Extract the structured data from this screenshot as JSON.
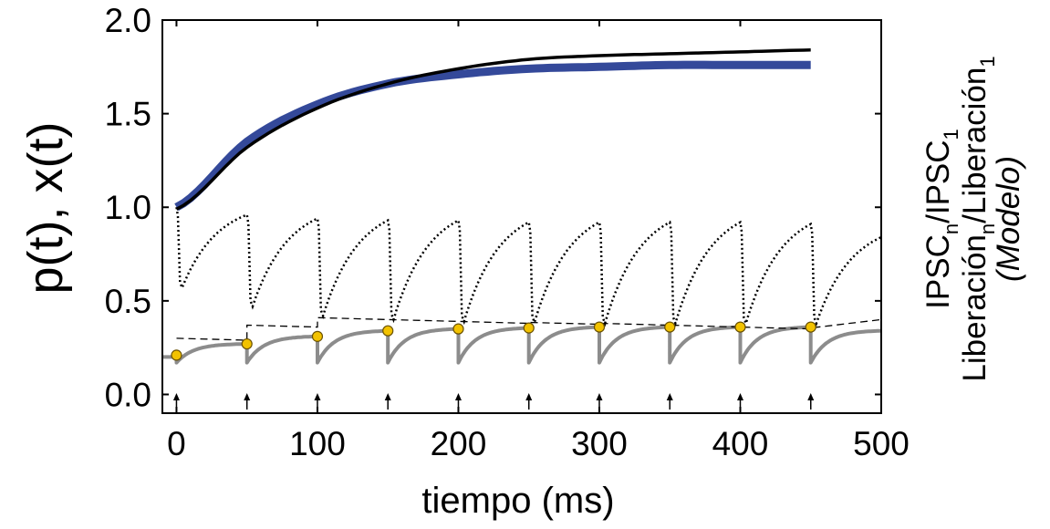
{
  "chart_data": {
    "type": "line",
    "xlabel": "tiempo (ms)",
    "ylabel": "p(t), x(t)",
    "right_label": {
      "line1": {
        "base": "IPSC",
        "sub1": "n",
        "mid": "/IPSC",
        "sub2": "1"
      },
      "line2": {
        "base": "Liberación",
        "sub1": "n",
        "mid": "/Liberación",
        "sub2": "1"
      },
      "line3": "(Modelo)"
    },
    "xlim": [
      -10,
      500
    ],
    "ylim": [
      -0.1,
      2.0
    ],
    "x_ticks": [
      0,
      100,
      200,
      300,
      400,
      500
    ],
    "x_tick_labels": [
      "0",
      "100",
      "200",
      "300",
      "400",
      "500"
    ],
    "y_ticks": [
      0.0,
      0.5,
      1.0,
      1.5,
      2.0
    ],
    "y_tick_labels": [
      "0.0",
      "0.5",
      "1.0",
      "1.5",
      "2.0"
    ],
    "grid": false,
    "colors": {
      "blue": "#34499a",
      "black": "#000000",
      "gray": "#8c8c8c",
      "marker_fill": "#f2c200",
      "marker_edge": "#6b5200"
    },
    "stimuli_ms": [
      0,
      50,
      100,
      150,
      200,
      250,
      300,
      350,
      400,
      450
    ],
    "ipsc_ratio_black": {
      "x": [
        0,
        50,
        100,
        150,
        200,
        250,
        300,
        350,
        400,
        450
      ],
      "y": [
        0.99,
        1.32,
        1.53,
        1.66,
        1.74,
        1.79,
        1.81,
        1.82,
        1.83,
        1.84
      ]
    },
    "release_ratio_blue": {
      "x": [
        0,
        50,
        100,
        150,
        200,
        250,
        300,
        350,
        400,
        450
      ],
      "y": [
        1.0,
        1.35,
        1.55,
        1.66,
        1.71,
        1.74,
        1.75,
        1.76,
        1.76,
        1.76
      ]
    },
    "release_markers": {
      "x": [
        0,
        50,
        100,
        150,
        200,
        250,
        300,
        350,
        400,
        450
      ],
      "y": [
        0.21,
        0.27,
        0.31,
        0.34,
        0.35,
        0.355,
        0.36,
        0.36,
        0.36,
        0.36
      ]
    },
    "p_gray": {
      "baseline": 0.2,
      "post_spike": [
        0.17,
        0.17,
        0.17,
        0.17,
        0.17,
        0.17,
        0.17,
        0.17,
        0.17,
        0.17
      ],
      "pre_spike": [
        0.2,
        0.27,
        0.31,
        0.34,
        0.35,
        0.355,
        0.36,
        0.36,
        0.36,
        0.36
      ],
      "end_value": 0.34
    },
    "x_dotted": {
      "pre_spike": [
        1.0,
        0.96,
        0.94,
        0.93,
        0.93,
        0.92,
        0.92,
        0.92,
        0.92,
        0.91
      ],
      "post_spike": [
        0.57,
        0.47,
        0.42,
        0.4,
        0.39,
        0.385,
        0.38,
        0.38,
        0.38,
        0.38
      ],
      "end_value": 0.84
    },
    "dashed_envelope": {
      "x": [
        0,
        50,
        100,
        150,
        200,
        250,
        300,
        350,
        400,
        450,
        500
      ],
      "y": [
        0.3,
        0.37,
        0.41,
        0.4,
        0.39,
        0.385,
        0.38,
        0.37,
        0.36,
        0.355,
        0.4
      ]
    }
  }
}
